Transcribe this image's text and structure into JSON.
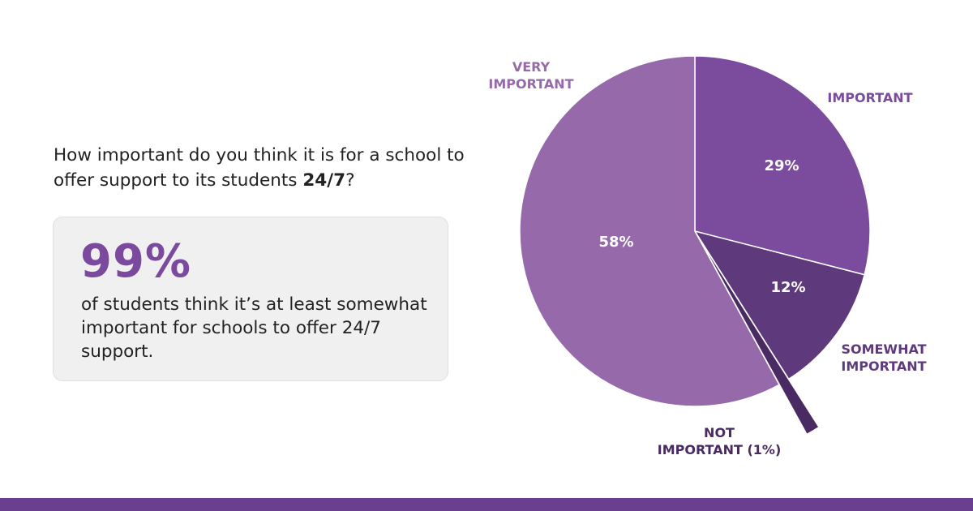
{
  "question": {
    "text_before": "How important do you think it is for a school to offer support to its students ",
    "emphasis": "24/7",
    "text_after": "?"
  },
  "stat": {
    "value": "99%",
    "description": "of students think it’s at least somewhat important for schools to offer 24/7 support."
  },
  "colors": {
    "important": "#7b4b9e",
    "somewhat_important": "#5e3a7d",
    "not_important": "#4a2a63",
    "very_important": "#966aaa",
    "accent": "#7b4a9e",
    "bar": "#6a3f8f"
  },
  "chart_data": {
    "type": "pie",
    "title": "",
    "slices": [
      {
        "label": "IMPORTANT",
        "value": 29,
        "value_label": "29%",
        "color": "#7b4b9e"
      },
      {
        "label": "SOMEWHAT IMPORTANT",
        "value": 12,
        "value_label": "12%",
        "color": "#5e3a7d"
      },
      {
        "label": "NOT IMPORTANT (1%)",
        "value": 1,
        "value_label": "",
        "color": "#4a2a63",
        "exploded": true
      },
      {
        "label": "VERY IMPORTANT",
        "value": 58,
        "value_label": "58%",
        "color": "#966aaa"
      }
    ],
    "legend": "none"
  }
}
